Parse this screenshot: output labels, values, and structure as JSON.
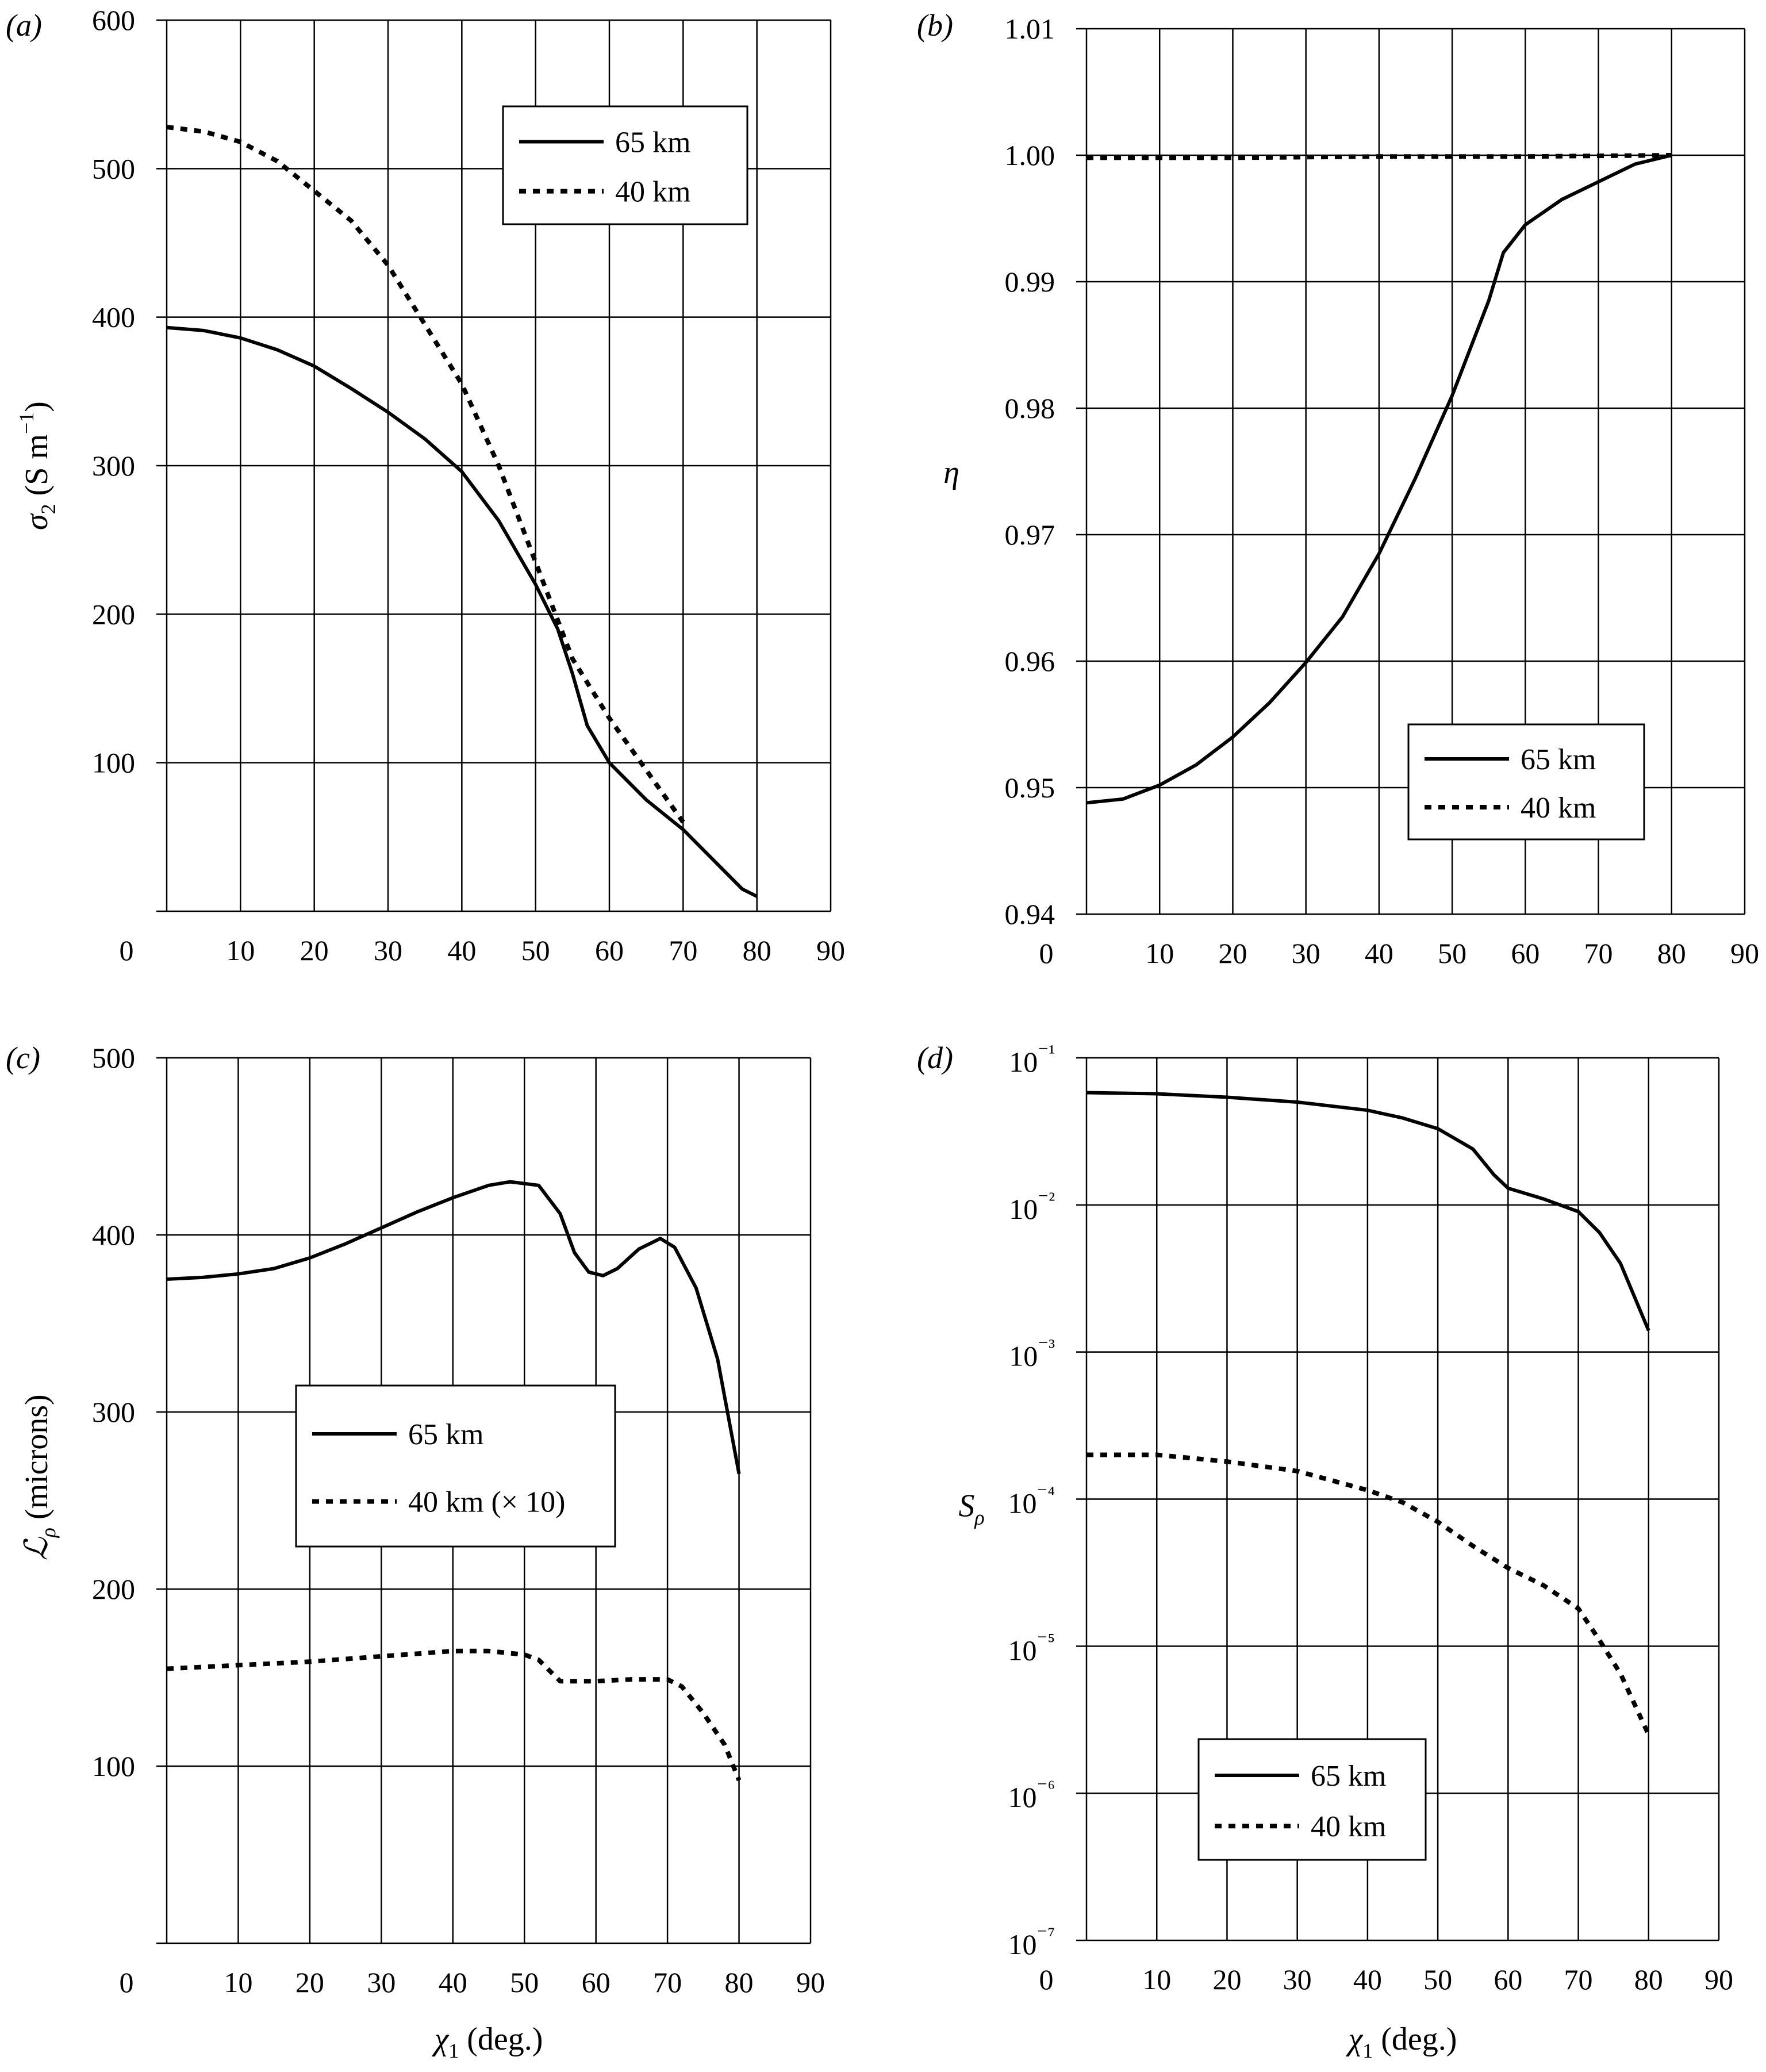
{
  "chart_data": [
    {
      "panel": "(a)",
      "type": "line",
      "xlabel": "",
      "ylabel": "σ₂ (S m⁻¹)",
      "xlim": [
        0,
        90
      ],
      "ylim": [
        0,
        600
      ],
      "yscale": "linear",
      "x_ticks": [
        "0",
        "10",
        "20",
        "30",
        "40",
        "50",
        "60",
        "70",
        "80",
        "90"
      ],
      "y_ticks": [
        "",
        "100",
        "200",
        "300",
        "400",
        "500",
        "600"
      ],
      "grid": true,
      "legend": "top-right",
      "series": [
        {
          "name": "65 km",
          "style": "solid",
          "x": [
            0,
            5,
            10,
            15,
            20,
            25,
            30,
            35,
            40,
            45,
            50,
            53,
            55,
            57,
            60,
            65,
            70,
            75,
            78,
            80
          ],
          "y": [
            393,
            391,
            386,
            378,
            367,
            352,
            336,
            318,
            296,
            263,
            220,
            190,
            160,
            125,
            100,
            75,
            55,
            30,
            15,
            10
          ]
        },
        {
          "name": "40 km",
          "style": "dashed",
          "x": [
            0,
            5,
            10,
            15,
            20,
            25,
            30,
            35,
            40,
            45,
            50,
            55,
            60,
            65,
            70
          ],
          "y": [
            528,
            525,
            518,
            505,
            485,
            465,
            435,
            395,
            355,
            300,
            235,
            170,
            130,
            95,
            60
          ]
        }
      ]
    },
    {
      "panel": "(b)",
      "type": "line",
      "xlabel": "",
      "ylabel": "η",
      "xlim": [
        0,
        90
      ],
      "ylim": [
        0.94,
        1.01
      ],
      "yscale": "linear",
      "x_ticks": [
        "0",
        "10",
        "20",
        "30",
        "40",
        "50",
        "60",
        "70",
        "80",
        "90"
      ],
      "y_ticks": [
        "0.94",
        "0.95",
        "0.96",
        "0.97",
        "0.98",
        "0.99",
        "1.00",
        "1.01"
      ],
      "grid": true,
      "legend": "bottom-right",
      "series": [
        {
          "name": "65 km",
          "style": "solid",
          "x": [
            0,
            5,
            10,
            15,
            20,
            25,
            30,
            35,
            40,
            45,
            50,
            55,
            57,
            60,
            65,
            70,
            75,
            80
          ],
          "y": [
            0.9488,
            0.9491,
            0.9502,
            0.9518,
            0.954,
            0.9567,
            0.9599,
            0.9635,
            0.9685,
            0.9745,
            0.981,
            0.9885,
            0.9923,
            0.9945,
            0.9965,
            0.9979,
            0.9993,
            1.0
          ]
        },
        {
          "name": "40 km",
          "style": "dashed",
          "x": [
            0,
            20,
            40,
            60,
            80
          ],
          "y": [
            0.9998,
            0.9998,
            0.9999,
            0.9999,
            1.0
          ]
        }
      ]
    },
    {
      "panel": "(c)",
      "type": "line",
      "xlabel": "χ₁ (deg.)",
      "ylabel": "ℒρ (microns)",
      "xlim": [
        0,
        90
      ],
      "ylim": [
        0,
        500
      ],
      "yscale": "linear",
      "x_ticks": [
        "0",
        "10",
        "20",
        "30",
        "40",
        "50",
        "60",
        "70",
        "80",
        "90"
      ],
      "y_ticks": [
        "",
        "100",
        "200",
        "300",
        "400",
        "500"
      ],
      "grid": true,
      "legend": "center",
      "series": [
        {
          "name": "65 km",
          "style": "solid",
          "x": [
            0,
            5,
            10,
            15,
            20,
            25,
            30,
            35,
            40,
            45,
            48,
            52,
            55,
            57,
            59,
            61,
            63,
            66,
            69,
            71,
            74,
            77,
            80
          ],
          "y": [
            375,
            376,
            378,
            381,
            387,
            395,
            404,
            413,
            421,
            428,
            430,
            428,
            412,
            390,
            379,
            377,
            381,
            392,
            398,
            393,
            370,
            330,
            265
          ]
        },
        {
          "name": "40 km (× 10)",
          "style": "dashed",
          "x": [
            0,
            10,
            20,
            30,
            40,
            45,
            50,
            52,
            55,
            60,
            65,
            70,
            72,
            75,
            78,
            80
          ],
          "y": [
            155,
            157,
            159,
            162,
            165,
            165,
            163,
            160,
            148,
            148,
            149,
            149,
            145,
            130,
            112,
            92
          ]
        }
      ]
    },
    {
      "panel": "(d)",
      "type": "line",
      "xlabel": "χ₁ (deg.)",
      "ylabel": "Sρ",
      "xlim": [
        0,
        90
      ],
      "ylim": [
        1e-07,
        0.1
      ],
      "yscale": "log",
      "x_ticks": [
        "0",
        "10",
        "20",
        "30",
        "40",
        "50",
        "60",
        "70",
        "80",
        "90"
      ],
      "y_ticks": [
        "10⁻⁷",
        "10⁻⁶",
        "10⁻⁵",
        "10⁻⁴",
        "10⁻³",
        "10⁻²",
        "10⁻¹"
      ],
      "grid": true,
      "legend": "bottom-left",
      "series": [
        {
          "name": "65 km",
          "style": "solid",
          "x": [
            0,
            10,
            20,
            30,
            40,
            45,
            50,
            55,
            58,
            60,
            65,
            70,
            73,
            76,
            80
          ],
          "y": [
            0.058,
            0.057,
            0.054,
            0.05,
            0.044,
            0.039,
            0.033,
            0.024,
            0.016,
            0.013,
            0.011,
            0.009,
            0.0065,
            0.004,
            0.0014
          ]
        },
        {
          "name": "40 km",
          "style": "dashed",
          "x": [
            0,
            10,
            20,
            30,
            40,
            45,
            50,
            55,
            60,
            65,
            70,
            73,
            76,
            80
          ],
          "y": [
            0.0002,
            0.0002,
            0.00018,
            0.000155,
            0.000115,
            9.5e-05,
            7e-05,
            4.8e-05,
            3.4e-05,
            2.6e-05,
            1.8e-05,
            1.1e-05,
            6.5e-06,
            2.5e-06
          ]
        }
      ]
    }
  ]
}
